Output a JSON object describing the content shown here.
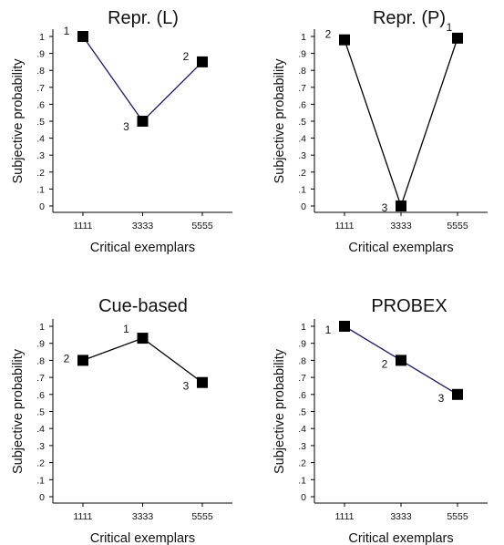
{
  "chart_data": [
    {
      "type": "line",
      "title": "Repr. (L)",
      "xlabel": "Critical exemplars",
      "ylabel": "Subjective probability",
      "categories": [
        "1111",
        "3333",
        "5555"
      ],
      "values": [
        1.0,
        0.5,
        0.85
      ],
      "point_labels": [
        "1",
        "3",
        "2"
      ],
      "y_ticks": [
        "0",
        ".1",
        ".2",
        ".3",
        ".4",
        ".5",
        ".6",
        ".7",
        ".8",
        ".9",
        "1"
      ],
      "ylim": [
        0,
        1
      ],
      "line_color": "#1a1a5e",
      "marker_color": "#000000"
    },
    {
      "type": "line",
      "title": "Repr. (P)",
      "xlabel": "Critical exemplars",
      "ylabel": "Subjective probability",
      "categories": [
        "1111",
        "3333",
        "5555"
      ],
      "values": [
        0.98,
        0.0,
        0.99
      ],
      "point_labels": [
        "2",
        "3",
        "1"
      ],
      "y_ticks": [
        "0",
        ".1",
        ".2",
        ".3",
        ".4",
        ".5",
        ".6",
        ".7",
        ".8",
        ".9",
        "1"
      ],
      "ylim": [
        0,
        1
      ],
      "line_color": "#000000",
      "marker_color": "#000000"
    },
    {
      "type": "line",
      "title": "Cue-based",
      "xlabel": "Critical exemplars",
      "ylabel": "Subjective probability",
      "categories": [
        "1111",
        "3333",
        "5555"
      ],
      "values": [
        0.8,
        0.93,
        0.67
      ],
      "point_labels": [
        "2",
        "1",
        "3"
      ],
      "y_ticks": [
        "0",
        ".1",
        ".2",
        ".3",
        ".4",
        ".5",
        ".6",
        ".7",
        ".8",
        ".9",
        "1"
      ],
      "ylim": [
        0,
        1
      ],
      "line_color": "#000000",
      "marker_color": "#000000"
    },
    {
      "type": "line",
      "title": "PROBEX",
      "xlabel": "Critical exemplars",
      "ylabel": "Subjective probability",
      "categories": [
        "1111",
        "3333",
        "5555"
      ],
      "values": [
        1.0,
        0.8,
        0.6
      ],
      "point_labels": [
        "1",
        "2",
        "3"
      ],
      "y_ticks": [
        "0",
        ".1",
        ".2",
        ".3",
        ".4",
        ".5",
        ".6",
        ".7",
        ".8",
        ".9",
        "1"
      ],
      "ylim": [
        0,
        1
      ],
      "line_color": "#1a1a5e",
      "marker_color": "#000000"
    }
  ]
}
